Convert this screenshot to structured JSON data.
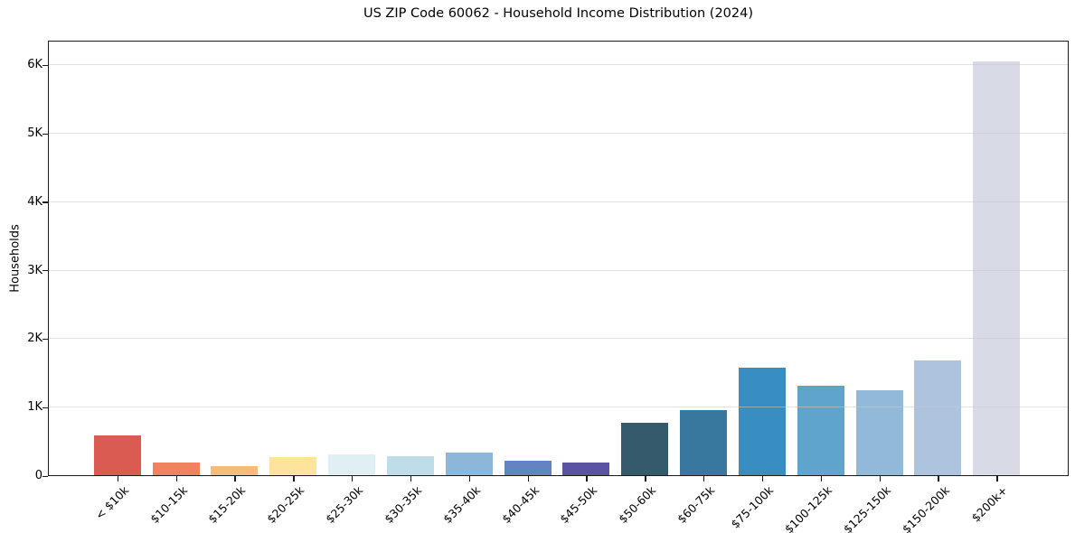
{
  "chart_data": {
    "type": "bar",
    "title": "US ZIP Code 60062 - Household Income Distribution (2024)",
    "xlabel": "",
    "ylabel": "Households",
    "categories": [
      "< $10k",
      "$10-15k",
      "$15-20k",
      "$20-25k",
      "$25-30k",
      "$30-35k",
      "$35-40k",
      "$40-45k",
      "$45-50k",
      "$50-60k",
      "$60-75k",
      "$75-100k",
      "$100-125k",
      "$125-150k",
      "$150-200k",
      "$200k+"
    ],
    "values": [
      585,
      190,
      130,
      265,
      300,
      275,
      330,
      215,
      190,
      760,
      955,
      1565,
      1310,
      1240,
      1670,
      6050
    ],
    "bar_colors": [
      "#d95b52",
      "#f0835e",
      "#f8bc79",
      "#fde39c",
      "#e0eff4",
      "#bfdde9",
      "#8db7d8",
      "#6185c0",
      "#5953a4",
      "#355a6c",
      "#38789f",
      "#388dc1",
      "#5fa4ca",
      "#93b9d9",
      "#aec3de",
      "#d8dae6"
    ],
    "yticks": {
      "labels": [
        "0",
        "1K",
        "2K",
        "3K",
        "4K",
        "5K",
        "6K"
      ],
      "values": [
        0,
        1000,
        2000,
        3000,
        4000,
        5000,
        6000
      ]
    },
    "ylim": [
      0,
      6360
    ],
    "grid": "horizontal",
    "legend_position": "none",
    "background_color": "#ffffff",
    "axis_color": "#1c1c1c",
    "gridline_color": "#cccccc"
  }
}
